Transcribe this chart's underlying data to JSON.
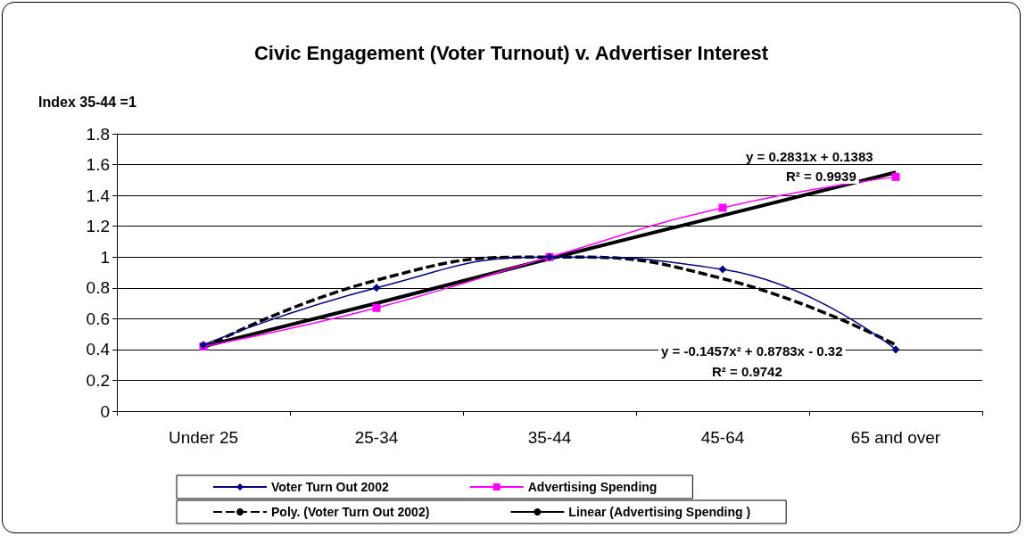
{
  "chart_data": {
    "type": "line",
    "title": "Civic Engagement (Voter Turnout) v. Advertiser Interest",
    "ylabel": "Index 35-44 =1",
    "categories": [
      "Under 25",
      "25-34",
      "35-44",
      "45-64",
      "65 and over"
    ],
    "series": [
      {
        "name": "Voter Turn Out 2002",
        "color": "#000080",
        "marker": "diamond",
        "line_style": "solid",
        "values": [
          0.43,
          0.8,
          1.0,
          0.92,
          0.4
        ]
      },
      {
        "name": "Advertising Spending",
        "color": "#ff00ff",
        "marker": "square",
        "line_style": "solid",
        "values": [
          0.42,
          0.67,
          1.0,
          1.32,
          1.52
        ]
      },
      {
        "name": "Poly. (Voter Turn Out 2002)",
        "color": "#000000",
        "marker": "none",
        "line_style": "dashed",
        "values": [
          0.41,
          0.85,
          1.0,
          0.86,
          0.43
        ]
      },
      {
        "name": "Linear (Advertising Spending )",
        "color": "#000000",
        "marker": "none",
        "line_style": "solid",
        "values": [
          0.42,
          0.7,
          0.99,
          1.27,
          1.55
        ]
      }
    ],
    "ylim": [
      0,
      1.8
    ],
    "yticks": [
      0,
      0.2,
      0.4,
      0.6,
      0.8,
      1,
      1.2,
      1.4,
      1.6,
      1.8
    ],
    "grid": "y",
    "legend": "bottom",
    "annotations": [
      "y = 0.2831x + 0.1383",
      "R² = 0.9939",
      "y = -0.1457x² + 0.8783x - 0.32",
      "R² = 0.9742"
    ]
  }
}
